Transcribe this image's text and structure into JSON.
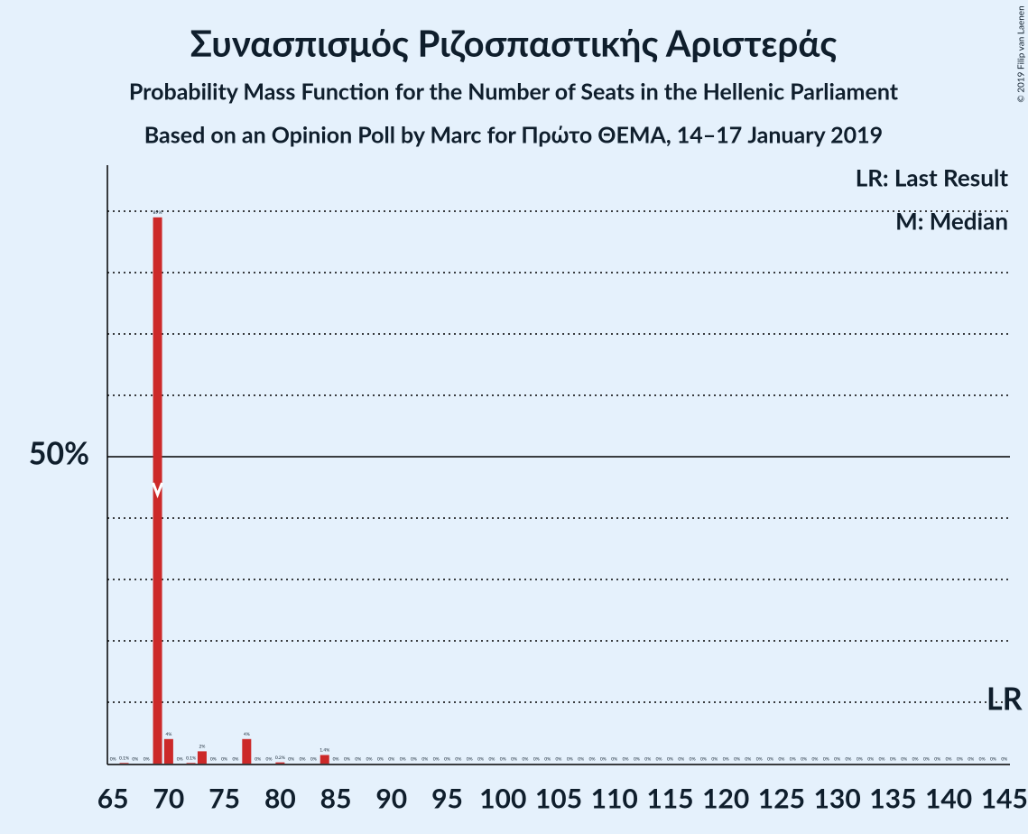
{
  "chart_data": {
    "type": "bar",
    "title": "Συνασπισμός Ριζοσπαστικής Αριστεράς",
    "subtitle": "Probability Mass Function for the Number of Seats in the Hellenic Parliament",
    "subtitle2": "Based on an Opinion Poll by Marc for Πρώτο ΘΕΜΑ, 14–17 January 2019",
    "copyright": "© 2019 Filip van Laenen",
    "legend": [
      "LR: Last Result",
      "M: Median"
    ],
    "last_result_label": "LR",
    "last_result": 145,
    "median": 69,
    "color": "#cc2929",
    "x": [
      65,
      66,
      67,
      68,
      69,
      70,
      71,
      72,
      73,
      74,
      75,
      76,
      77,
      78,
      79,
      80,
      81,
      82,
      83,
      84,
      85,
      86,
      87,
      88,
      89,
      90,
      91,
      92,
      93,
      94,
      95,
      96,
      97,
      98,
      99,
      100,
      101,
      102,
      103,
      104,
      105,
      106,
      107,
      108,
      109,
      110,
      111,
      112,
      113,
      114,
      115,
      116,
      117,
      118,
      119,
      120,
      121,
      122,
      123,
      124,
      125,
      126,
      127,
      128,
      129,
      130,
      131,
      132,
      133,
      134,
      135,
      136,
      137,
      138,
      139,
      140,
      141,
      142,
      143,
      144,
      145
    ],
    "values": [
      0,
      0.1,
      0,
      0,
      89,
      4,
      0,
      0.1,
      2,
      0,
      0,
      0,
      4,
      0,
      0,
      0.2,
      0,
      0,
      0,
      1.4,
      0,
      0,
      0,
      0,
      0,
      0,
      0,
      0,
      0,
      0,
      0,
      0,
      0,
      0,
      0,
      0,
      0,
      0,
      0,
      0,
      0,
      0,
      0,
      0,
      0,
      0,
      0,
      0,
      0,
      0,
      0,
      0,
      0,
      0,
      0,
      0,
      0,
      0,
      0,
      0,
      0,
      0,
      0,
      0,
      0,
      0,
      0,
      0,
      0,
      0,
      0,
      0,
      0,
      0,
      0,
      0,
      0,
      0,
      0,
      0,
      0
    ],
    "value_labels": [
      "0%",
      "0.1%",
      "0%",
      "0%",
      "89%",
      "4%",
      "0%",
      "0.1%",
      "2%",
      "0%",
      "0%",
      "0%",
      "4%",
      "0%",
      "0%",
      "0.2%",
      "0%",
      "0%",
      "0%",
      "1.4%",
      "0%",
      "0%",
      "0%",
      "0%",
      "0%",
      "0%",
      "0%",
      "0%",
      "0%",
      "0%",
      "0%",
      "0%",
      "0%",
      "0%",
      "0%",
      "0%",
      "0%",
      "0%",
      "0%",
      "0%",
      "0%",
      "0%",
      "0%",
      "0%",
      "0%",
      "0%",
      "0%",
      "0%",
      "0%",
      "0%",
      "0%",
      "0%",
      "0%",
      "0%",
      "0%",
      "0%",
      "0%",
      "0%",
      "0%",
      "0%",
      "0%",
      "0%",
      "0%",
      "0%",
      "0%",
      "0%",
      "0%",
      "0%",
      "0%",
      "0%",
      "0%",
      "0%",
      "0%",
      "0%",
      "0%",
      "0%",
      "0%",
      "0%",
      "0%",
      "0%",
      "0%"
    ],
    "xlim": [
      64.5,
      145.5
    ],
    "xticks": [
      65,
      70,
      75,
      80,
      85,
      90,
      95,
      100,
      105,
      110,
      115,
      120,
      125,
      130,
      135,
      140,
      145
    ],
    "ylim": [
      0,
      97.5
    ],
    "yticks": [
      {
        "value": 50,
        "label": "50%"
      }
    ],
    "ygrid": [
      10,
      20,
      30,
      40,
      60,
      70,
      80,
      90
    ]
  }
}
